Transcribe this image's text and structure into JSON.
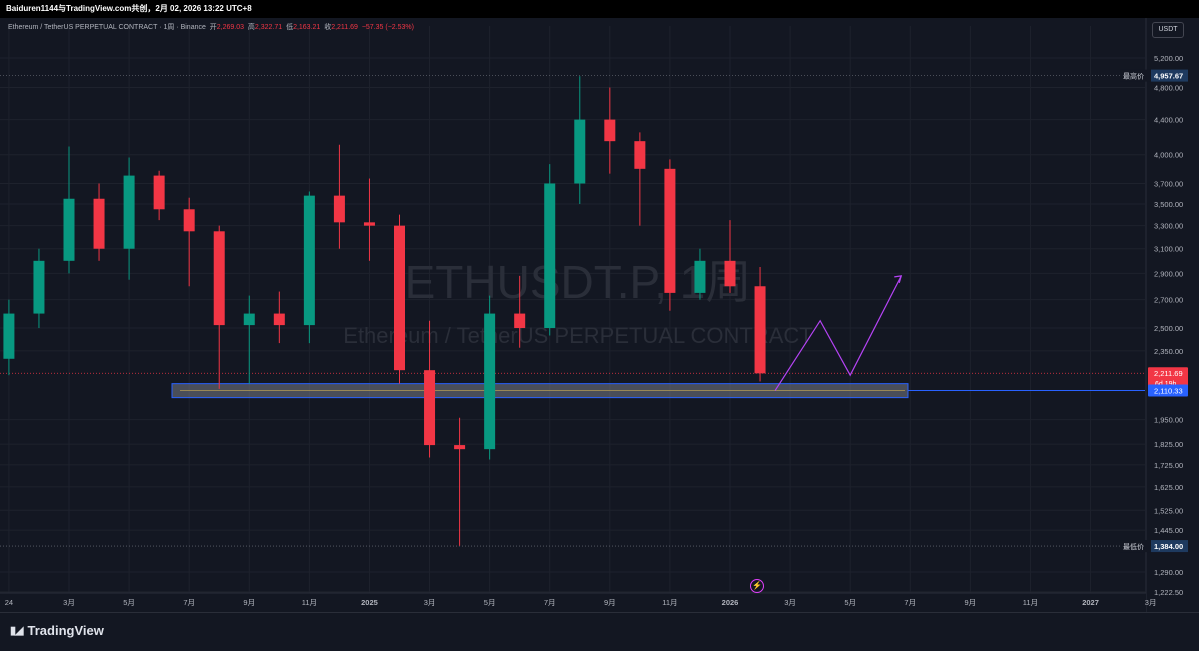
{
  "header": {
    "attribution": "Baiduren1144与TradingView.com共创，2月 02, 2026 13:22 UTC+8"
  },
  "symbol_info": {
    "name": "Ethereum / TetherUS PERPETUAL CONTRACT · 1周 · Binance",
    "open_label": "开",
    "open": "2,269.03",
    "high_label": "高",
    "high": "2,322.71",
    "low_label": "低",
    "low": "2,163.21",
    "close_label": "收",
    "close": "2,211.69",
    "change": "−57.35 (−2.53%)"
  },
  "currency_button": "USDT",
  "watermark": {
    "symbol": "ETHUSDT.P, 1周",
    "description": "Ethereum / TetherUS PERPETUAL CONTRACT"
  },
  "price_scale": {
    "ticks": [
      "5,200.00",
      "4,800.00",
      "4,400.00",
      "4,000.00",
      "3,700.00",
      "3,500.00",
      "3,300.00",
      "3,100.00",
      "2,900.00",
      "2,700.00",
      "2,500.00",
      "2,350.00",
      "1,950.00",
      "1,825.00",
      "1,725.00",
      "1,625.00",
      "1,525.00",
      "1,445.00",
      "1,290.00",
      "1,222.50"
    ],
    "ath_label": "最高价",
    "ath_value": "4,957.67",
    "atl_label": "最低价",
    "atl_value": "1,384.00",
    "current_price": "2,211.69",
    "countdown": "6d 19h",
    "line_price": "2,110.33"
  },
  "time_scale": [
    "24",
    "3月",
    "5月",
    "7月",
    "9月",
    "11月",
    "2025",
    "3月",
    "5月",
    "7月",
    "9月",
    "11月",
    "2026",
    "3月",
    "5月",
    "7月",
    "9月",
    "11月",
    "2027",
    "3月"
  ],
  "footer": {
    "brand": "TradingView"
  },
  "colors": {
    "background": "#131722",
    "up": "#089981",
    "down": "#f23645",
    "support_zone": "#2962ff",
    "projection": "#b543f5"
  },
  "chart_data": {
    "type": "candlestick",
    "title": "Ethereum / TetherUS PERPETUAL CONTRACT · 1周 · Binance",
    "ylim": [
      1222.5,
      5400
    ],
    "series": [
      {
        "name": "ETHUSDT.P",
        "x": [
          "2024-01",
          "2024-02",
          "2024-03",
          "2024-04",
          "2024-05",
          "2024-06",
          "2024-07",
          "2024-08",
          "2024-09",
          "2024-10",
          "2024-11",
          "2024-12",
          "2025-01",
          "2025-02",
          "2025-03",
          "2025-04",
          "2025-05",
          "2025-06",
          "2025-07",
          "2025-08",
          "2025-09",
          "2025-10",
          "2025-11",
          "2025-12",
          "2026-01",
          "2026-02"
        ],
        "ohlc": [
          [
            2300,
            2700,
            2200,
            2600
          ],
          [
            2600,
            3100,
            2500,
            3000
          ],
          [
            3000,
            4090,
            2900,
            3550
          ],
          [
            3550,
            3700,
            3000,
            3100
          ],
          [
            3100,
            3970,
            2850,
            3780
          ],
          [
            3780,
            3830,
            3350,
            3450
          ],
          [
            3450,
            3560,
            2800,
            3250
          ],
          [
            3250,
            3300,
            2120,
            2520
          ],
          [
            2520,
            2730,
            2150,
            2600
          ],
          [
            2600,
            2760,
            2400,
            2520
          ],
          [
            2520,
            3620,
            2400,
            3580
          ],
          [
            3580,
            4110,
            3100,
            3330
          ],
          [
            3330,
            3750,
            3000,
            3300
          ],
          [
            3300,
            3400,
            2150,
            2230
          ],
          [
            2230,
            2550,
            1760,
            1820
          ],
          [
            1820,
            1960,
            1385,
            1800
          ],
          [
            1800,
            2730,
            1750,
            2600
          ],
          [
            2600,
            2880,
            2370,
            2500
          ],
          [
            2500,
            3900,
            2450,
            3700
          ],
          [
            3700,
            4950,
            3500,
            4400
          ],
          [
            4400,
            4800,
            3800,
            4150
          ],
          [
            4150,
            4250,
            3300,
            3850
          ],
          [
            3850,
            3950,
            2620,
            2750
          ],
          [
            2750,
            3100,
            2700,
            3000
          ],
          [
            3000,
            3350,
            2750,
            2800
          ],
          [
            2800,
            2950,
            2163,
            2211
          ]
        ]
      }
    ],
    "annotations": {
      "support_zone": [
        2070,
        2150
      ],
      "horizontal_line": 2110.33,
      "projection_path": [
        2110,
        2550,
        2200,
        2880
      ],
      "all_time_high": 4957.67,
      "all_time_low": 1384.0,
      "last_close": 2211.69
    },
    "grid": true,
    "legend": "none"
  }
}
